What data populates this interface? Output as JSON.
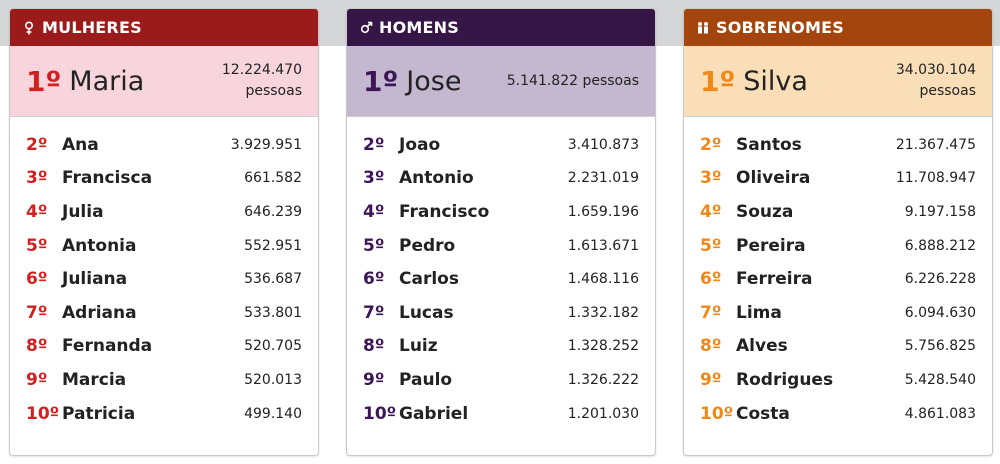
{
  "panels": [
    {
      "id": "mulheres",
      "title": "MULHERES",
      "icon": "female-symbol-icon",
      "header_color": "#9b1a1a",
      "top_bg": "#f8d4dd",
      "rank_color": "#d21f1f",
      "top": {
        "rank": "1º",
        "name": "Maria",
        "count_line1": "12.224.470",
        "count_line2": "pessoas"
      },
      "rows": [
        {
          "rank": "2º",
          "name": "Ana",
          "count": "3.929.951"
        },
        {
          "rank": "3º",
          "name": "Francisca",
          "count": "661.582"
        },
        {
          "rank": "4º",
          "name": "Julia",
          "count": "646.239"
        },
        {
          "rank": "5º",
          "name": "Antonia",
          "count": "552.951"
        },
        {
          "rank": "6º",
          "name": "Juliana",
          "count": "536.687"
        },
        {
          "rank": "7º",
          "name": "Adriana",
          "count": "533.801"
        },
        {
          "rank": "8º",
          "name": "Fernanda",
          "count": "520.705"
        },
        {
          "rank": "9º",
          "name": "Marcia",
          "count": "520.013"
        },
        {
          "rank": "10º",
          "name": "Patricia",
          "count": "499.140"
        }
      ]
    },
    {
      "id": "homens",
      "title": "HOMENS",
      "icon": "male-symbol-icon",
      "header_color": "#351647",
      "top_bg": "#c4b7d0",
      "rank_color": "#3d1657",
      "top": {
        "rank": "1º",
        "name": "Jose",
        "count_line1": "5.141.822 pessoas",
        "count_line2": ""
      },
      "rows": [
        {
          "rank": "2º",
          "name": "Joao",
          "count": "3.410.873"
        },
        {
          "rank": "3º",
          "name": "Antonio",
          "count": "2.231.019"
        },
        {
          "rank": "4º",
          "name": "Francisco",
          "count": "1.659.196"
        },
        {
          "rank": "5º",
          "name": "Pedro",
          "count": "1.613.671"
        },
        {
          "rank": "6º",
          "name": "Carlos",
          "count": "1.468.116"
        },
        {
          "rank": "7º",
          "name": "Lucas",
          "count": "1.332.182"
        },
        {
          "rank": "8º",
          "name": "Luiz",
          "count": "1.328.252"
        },
        {
          "rank": "9º",
          "name": "Paulo",
          "count": "1.326.222"
        },
        {
          "rank": "10º",
          "name": "Gabriel",
          "count": "1.201.030"
        }
      ]
    },
    {
      "id": "sobrenomes",
      "title": "SOBRENOMES",
      "icon": "family-people-icon",
      "header_color": "#a3450d",
      "top_bg": "#f9deb8",
      "rank_color": "#f08717",
      "top": {
        "rank": "1º",
        "name": "Silva",
        "count_line1": "34.030.104",
        "count_line2": "pessoas"
      },
      "rows": [
        {
          "rank": "2º",
          "name": "Santos",
          "count": "21.367.475"
        },
        {
          "rank": "3º",
          "name": "Oliveira",
          "count": "11.708.947"
        },
        {
          "rank": "4º",
          "name": "Souza",
          "count": "9.197.158"
        },
        {
          "rank": "5º",
          "name": "Pereira",
          "count": "6.888.212"
        },
        {
          "rank": "6º",
          "name": "Ferreira",
          "count": "6.226.228"
        },
        {
          "rank": "7º",
          "name": "Lima",
          "count": "6.094.630"
        },
        {
          "rank": "8º",
          "name": "Alves",
          "count": "5.756.825"
        },
        {
          "rank": "9º",
          "name": "Rodrigues",
          "count": "5.428.540"
        },
        {
          "rank": "10º",
          "name": "Costa",
          "count": "4.861.083"
        }
      ]
    }
  ]
}
